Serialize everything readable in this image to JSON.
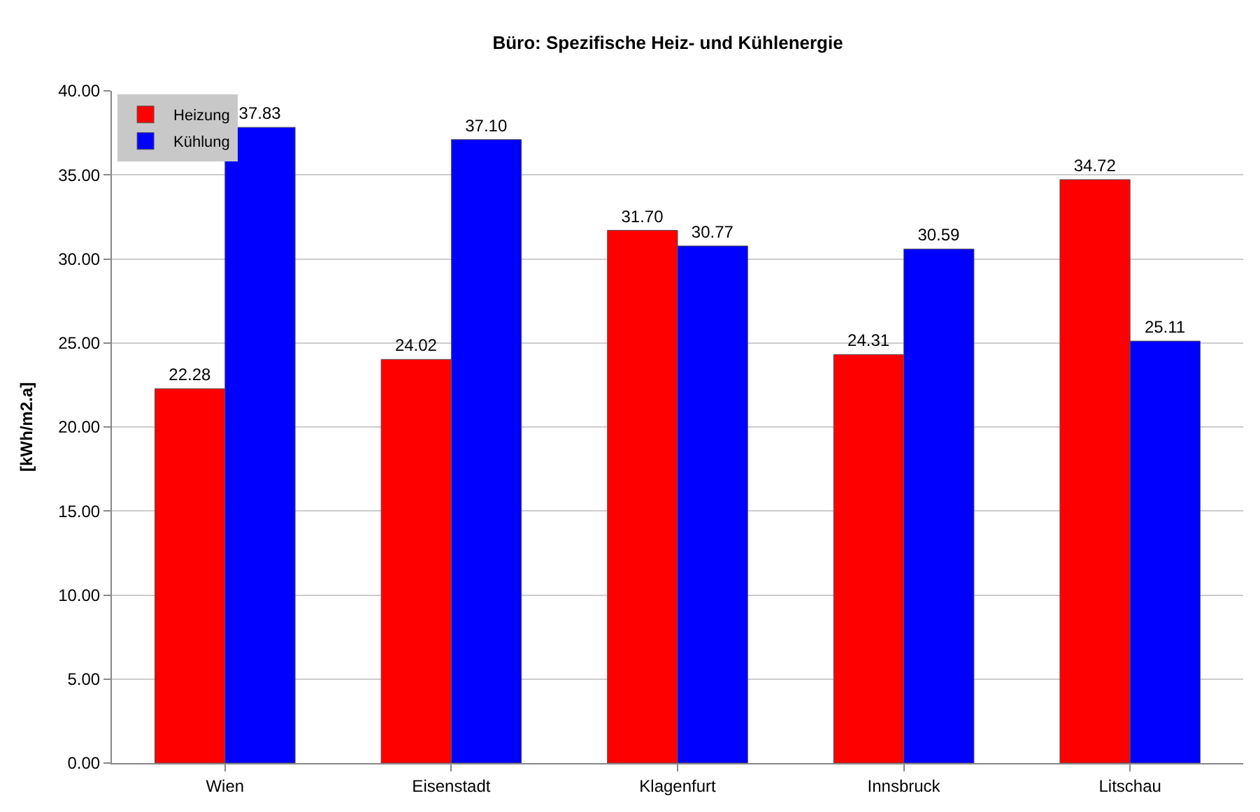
{
  "chart_data": {
    "type": "bar",
    "title": "Büro: Spezifische Heiz- und Kühlenergie",
    "ylabel": "[kWh/m2.a]",
    "categories": [
      "Wien",
      "Eisenstadt",
      "Klagenfurt",
      "Innsbruck",
      "Litschau"
    ],
    "series": [
      {
        "name": "Heizung",
        "color": "#ff0000",
        "values": [
          22.28,
          24.02,
          31.7,
          24.31,
          34.72
        ],
        "value_labels": [
          "22.28",
          "24.02",
          "31.70",
          "24.31",
          "34.72"
        ]
      },
      {
        "name": "Kühlung",
        "color": "#0000ff",
        "values": [
          37.83,
          37.1,
          30.77,
          30.59,
          25.11
        ],
        "value_labels": [
          "37.83",
          "37.10",
          "30.77",
          "30.59",
          "25.11"
        ]
      }
    ],
    "ylim": [
      0,
      40
    ],
    "yticks": [
      {
        "value": 0,
        "label": "0.00"
      },
      {
        "value": 5,
        "label": "5.00"
      },
      {
        "value": 10,
        "label": "10.00"
      },
      {
        "value": 15,
        "label": "15.00"
      },
      {
        "value": 20,
        "label": "20.00"
      },
      {
        "value": 25,
        "label": "25.00"
      },
      {
        "value": 30,
        "label": "30.00"
      },
      {
        "value": 35,
        "label": "35.00"
      },
      {
        "value": 40,
        "label": "40.00"
      }
    ],
    "grid": "y",
    "legend": "top left"
  }
}
